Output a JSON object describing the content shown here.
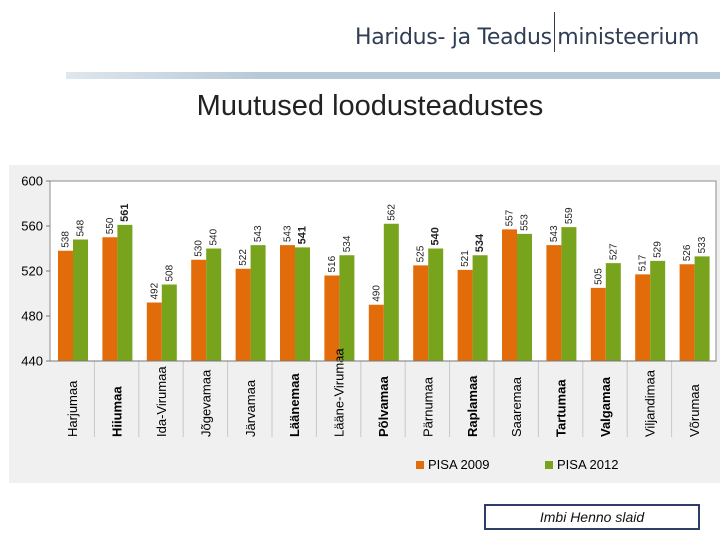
{
  "header": {
    "logo_part1": "Haridus- ja Teadus",
    "logo_part2": "ministeerium",
    "logo_color": "#2f3e55"
  },
  "slide_title": "Muutused loodusteadustes",
  "credit": "Imbi Henno slaid",
  "chart_data": {
    "type": "bar",
    "title": "",
    "xlabel": "",
    "ylabel": "",
    "ylim": [
      440,
      600
    ],
    "yticks": [
      440,
      480,
      520,
      560,
      600
    ],
    "grid": false,
    "legend_position": "bottom",
    "categories": [
      "Harjumaa",
      "Hiiumaa",
      "Ida-Virumaa",
      "Jõgevamaa",
      "Järvamaa",
      "Läänemaa",
      "Lääne-Virumaa",
      "Põlvamaa",
      "Pärnumaa",
      "Raplamaa",
      "Saaremaa",
      "Tartumaa",
      "Valgamaa",
      "Viljandimaa",
      "Võrumaa"
    ],
    "bold_categories": [
      "Hiiumaa",
      "Läänemaa",
      "Põlvamaa",
      "Raplamaa",
      "Tartumaa",
      "Valgamaa"
    ],
    "series": [
      {
        "name": "PISA 2009",
        "color": "#e36c0a",
        "values": [
          538,
          550,
          492,
          530,
          522,
          543,
          516,
          490,
          525,
          521,
          557,
          543,
          505,
          517,
          526
        ],
        "bold_labels": []
      },
      {
        "name": "PISA  2012",
        "color": "#77a41c",
        "values": [
          548,
          561,
          508,
          540,
          543,
          541,
          534,
          562,
          540,
          534,
          553,
          559,
          527,
          529,
          533
        ],
        "bold_labels": [
          1,
          5,
          8,
          9
        ]
      }
    ]
  }
}
